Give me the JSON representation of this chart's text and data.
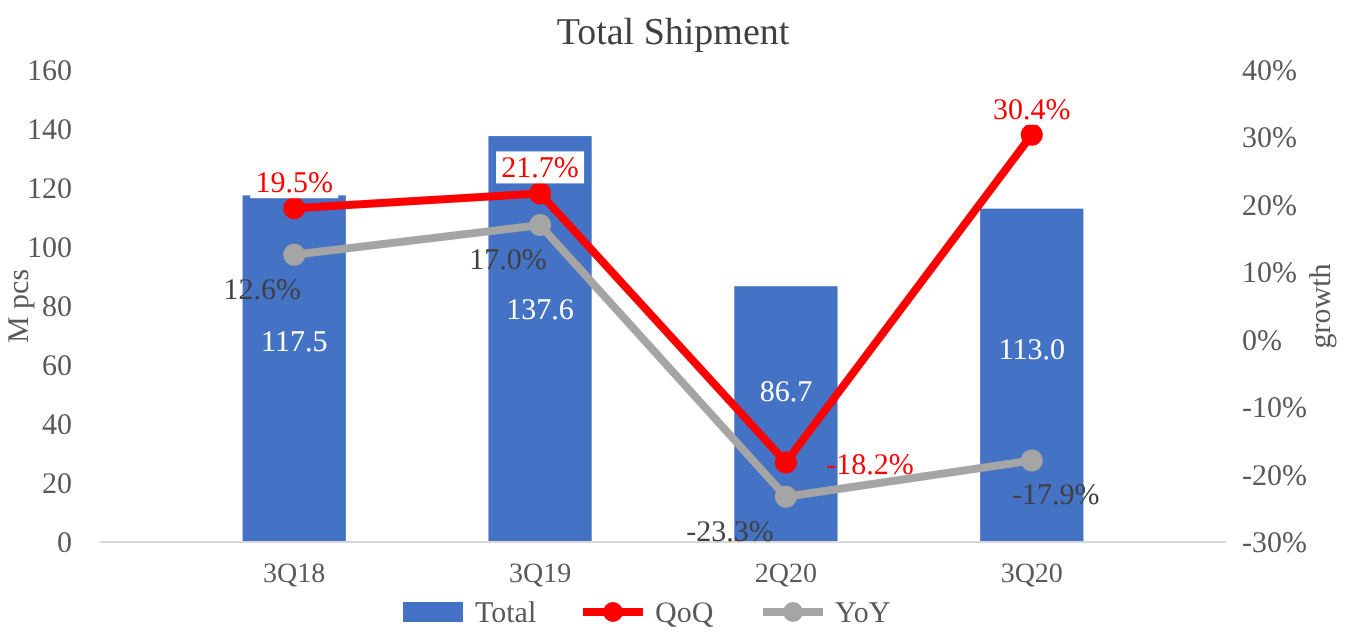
{
  "chart_data": {
    "type": "bar",
    "title": "Total Shipment",
    "ylabel": "M pcs",
    "y2label": "growth",
    "categories": [
      "3Q18",
      "3Q19",
      "2Q20",
      "3Q20"
    ],
    "series": [
      {
        "name": "Total",
        "color": "#4472c4",
        "values": [
          117.5,
          137.6,
          86.7,
          113.0
        ],
        "value_labels": [
          "117.5",
          "137.6",
          "86.7",
          "113.0"
        ]
      },
      {
        "name": "QoQ",
        "type": "line",
        "axis": "y2",
        "color": "#ff0000",
        "values": [
          19.5,
          21.7,
          -18.2,
          30.4
        ],
        "value_labels": [
          "19.5%",
          "21.7%",
          "-18.2%",
          "30.4%"
        ]
      },
      {
        "name": "YoY",
        "type": "line",
        "axis": "y2",
        "color": "#a5a5a5",
        "values": [
          12.6,
          17.0,
          -23.3,
          -17.9
        ],
        "value_labels": [
          "12.6%",
          "17.0%",
          "-23.3%",
          "-17.9%"
        ]
      }
    ],
    "ylim": [
      0,
      160
    ],
    "yticks": [
      0,
      20,
      40,
      60,
      80,
      100,
      120,
      140,
      160
    ],
    "y2lim": [
      -30,
      40
    ],
    "y2ticks": [
      {
        "value": -30,
        "label": "-30%"
      },
      {
        "value": -20,
        "label": "-20%"
      },
      {
        "value": -10,
        "label": "-10%"
      },
      {
        "value": 0,
        "label": "0%"
      },
      {
        "value": 10,
        "label": "10%"
      },
      {
        "value": 20,
        "label": "20%"
      },
      {
        "value": 30,
        "label": "30%"
      },
      {
        "value": 40,
        "label": "40%"
      }
    ],
    "marker": "circle",
    "legend": "bottom",
    "grid": false
  }
}
